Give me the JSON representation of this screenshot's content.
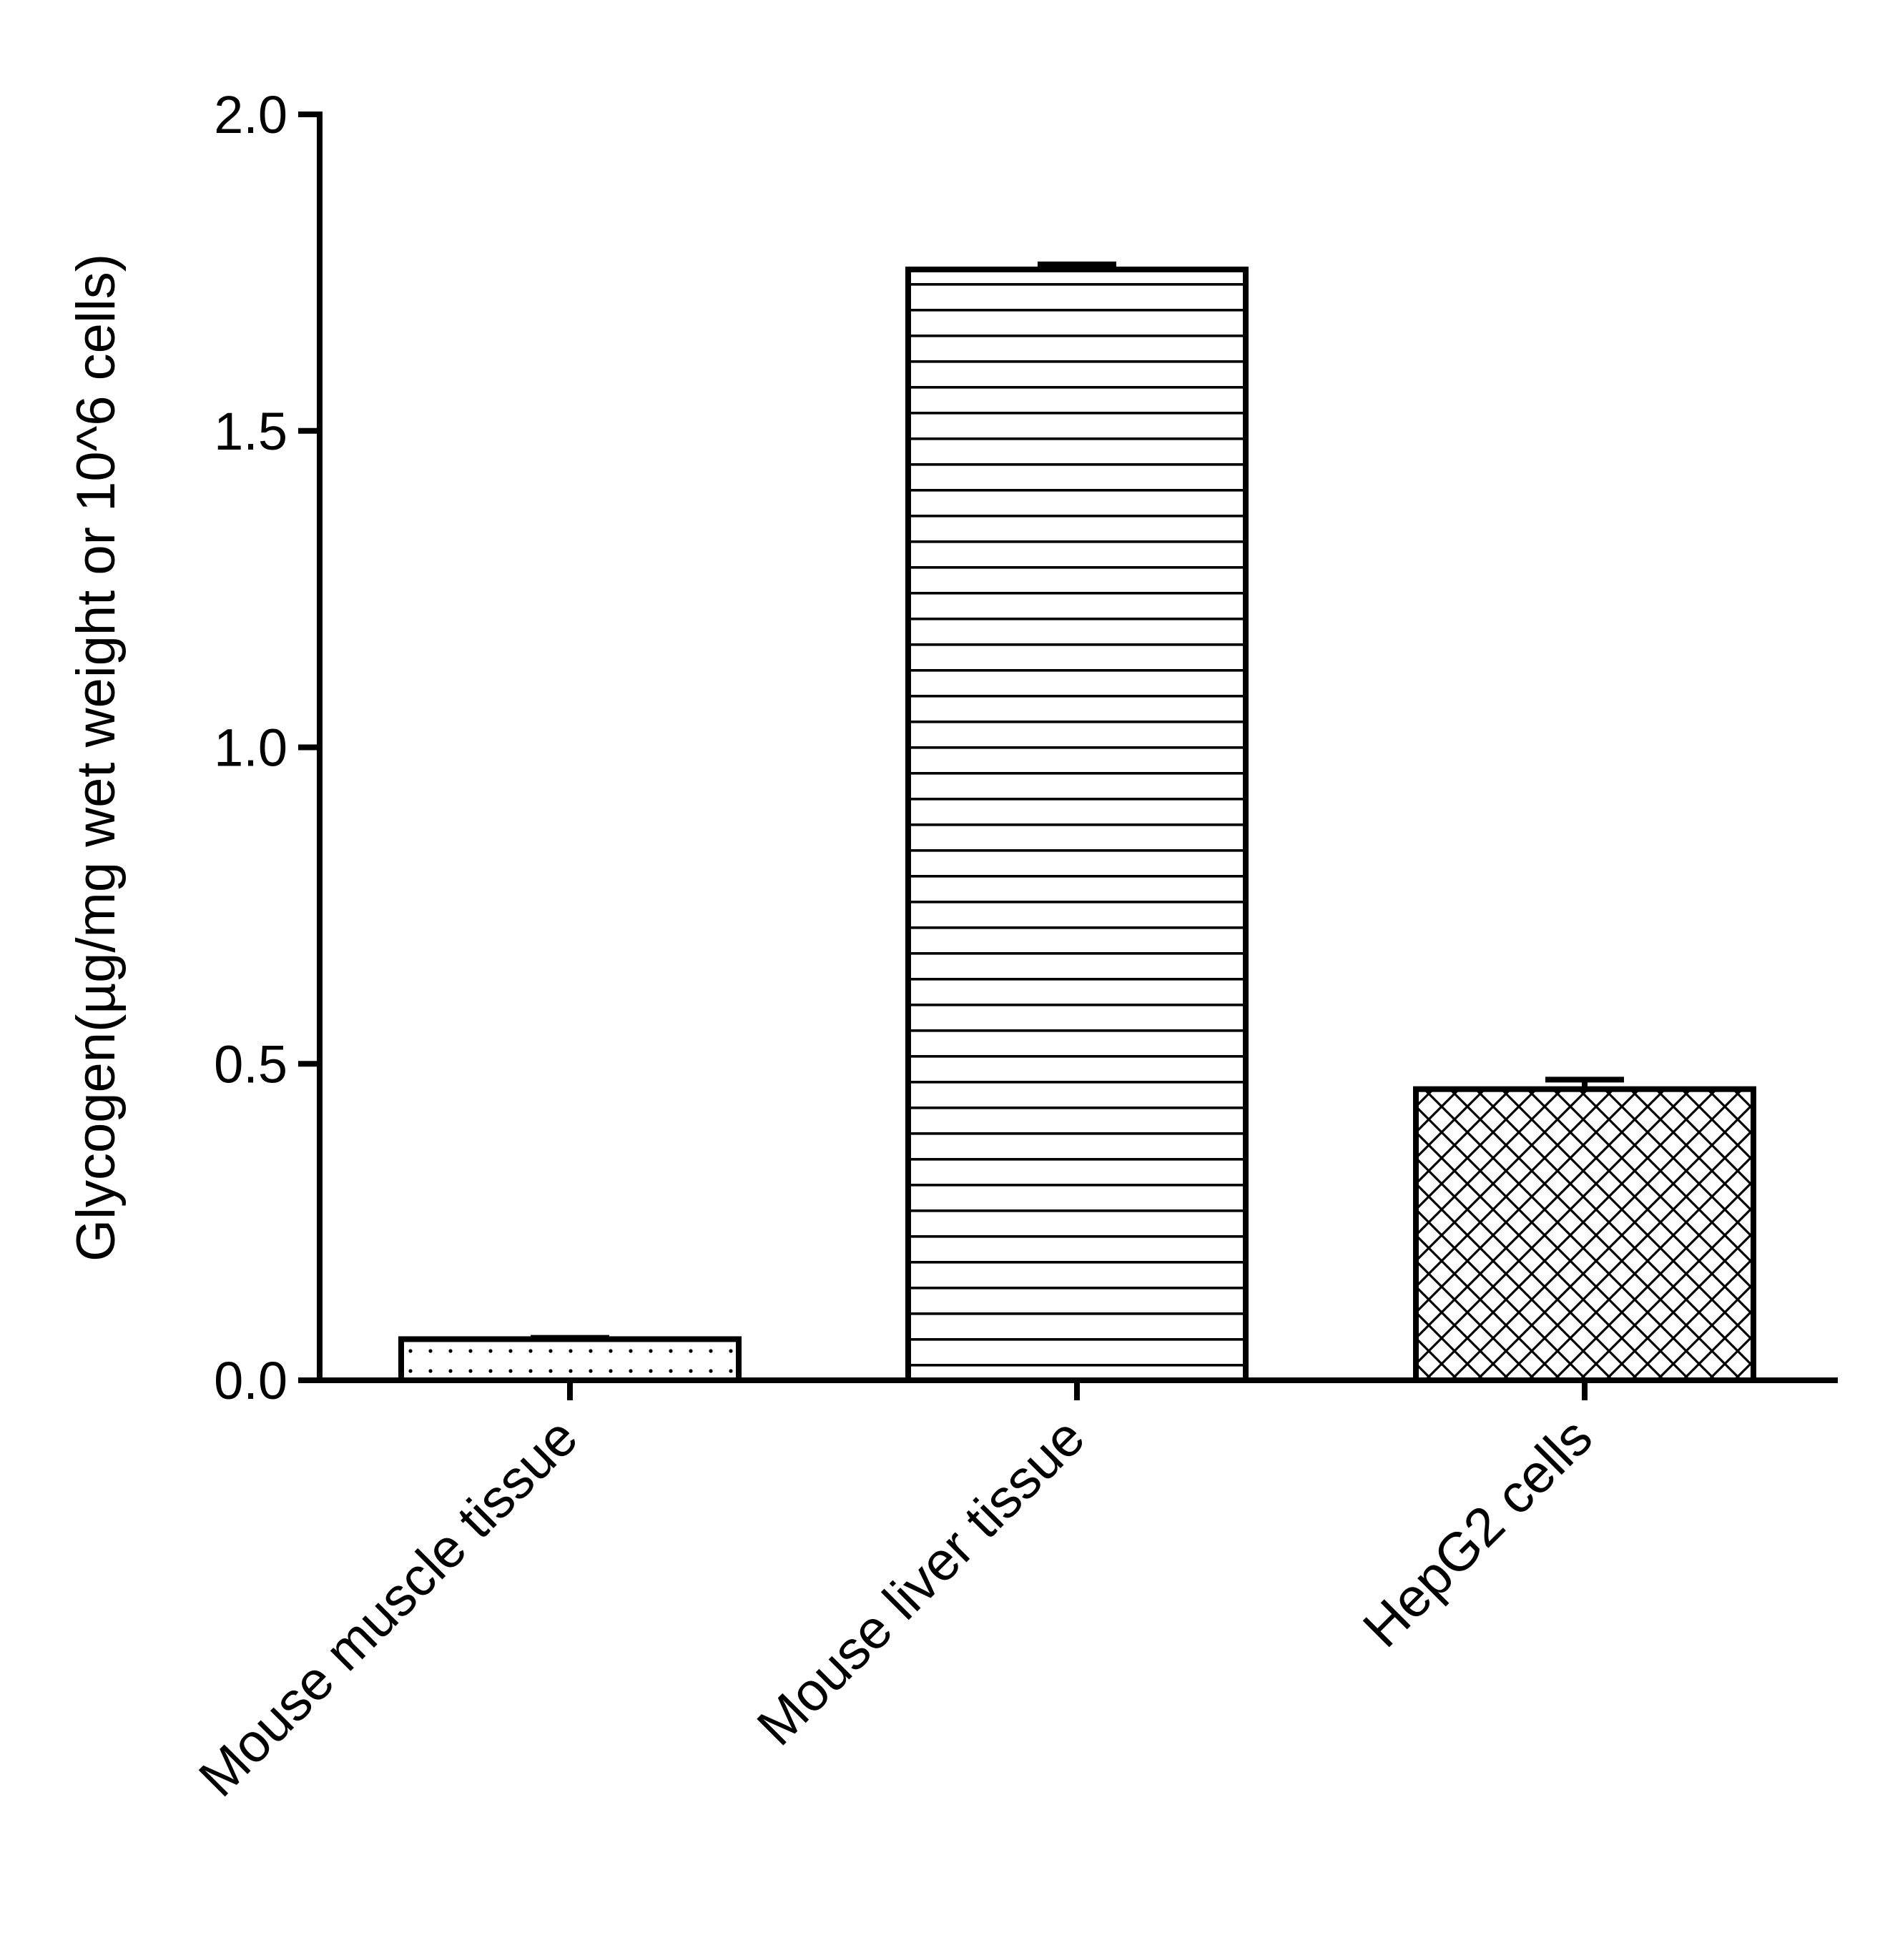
{
  "chart_data": {
    "type": "bar",
    "title": "",
    "xlabel": "",
    "ylabel": "Glycogen(µg/mg wet weight or 10^6 cells)",
    "ylim": [
      0,
      2.0
    ],
    "yticks": [
      0.0,
      0.5,
      1.0,
      1.5,
      2.0
    ],
    "ytick_labels": [
      "0.0",
      "0.5",
      "1.0",
      "1.5",
      "2.0"
    ],
    "categories": [
      "Mouse muscle tissue",
      "Mouse liver tissue",
      "HepG2 cells"
    ],
    "values": [
      0.065,
      1.755,
      0.46
    ],
    "errors": [
      0.002,
      0.008,
      0.015
    ],
    "patterns": [
      "dots",
      "horizontal-lines",
      "crosshatch"
    ],
    "grid": false,
    "legend": "none",
    "colors": {
      "stroke": "#000000",
      "fill": "#ffffff"
    }
  }
}
